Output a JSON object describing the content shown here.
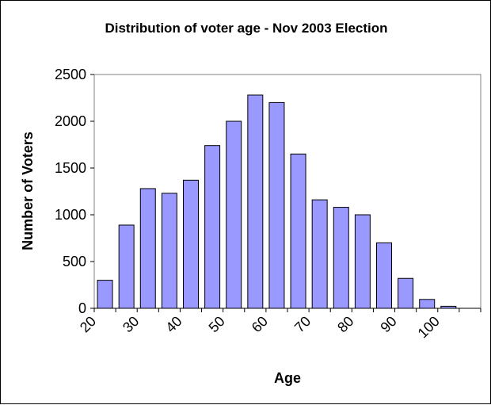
{
  "chart_data": {
    "type": "bar",
    "title": "Distribution of voter age - Nov 2003 Election",
    "xlabel": "Age",
    "ylabel": "Number of Voters",
    "x_tick_labels": [
      "20",
      "30",
      "40",
      "50",
      "60",
      "70",
      "80",
      "90",
      "100"
    ],
    "y_ticks": [
      "0",
      "500",
      "1000",
      "1500",
      "2000",
      "2500"
    ],
    "ylim": [
      0,
      2500
    ],
    "bin_count": 18,
    "values": [
      300,
      890,
      1280,
      1230,
      1370,
      1740,
      2000,
      2280,
      2200,
      1650,
      1160,
      1080,
      1000,
      700,
      320,
      95,
      22,
      0
    ],
    "grid": false,
    "legend": "none",
    "colors": {
      "bar_fill": "#9999ff",
      "bar_stroke": "#000000",
      "plot_bg": "#ffffff",
      "plot_border": "#808080"
    }
  }
}
